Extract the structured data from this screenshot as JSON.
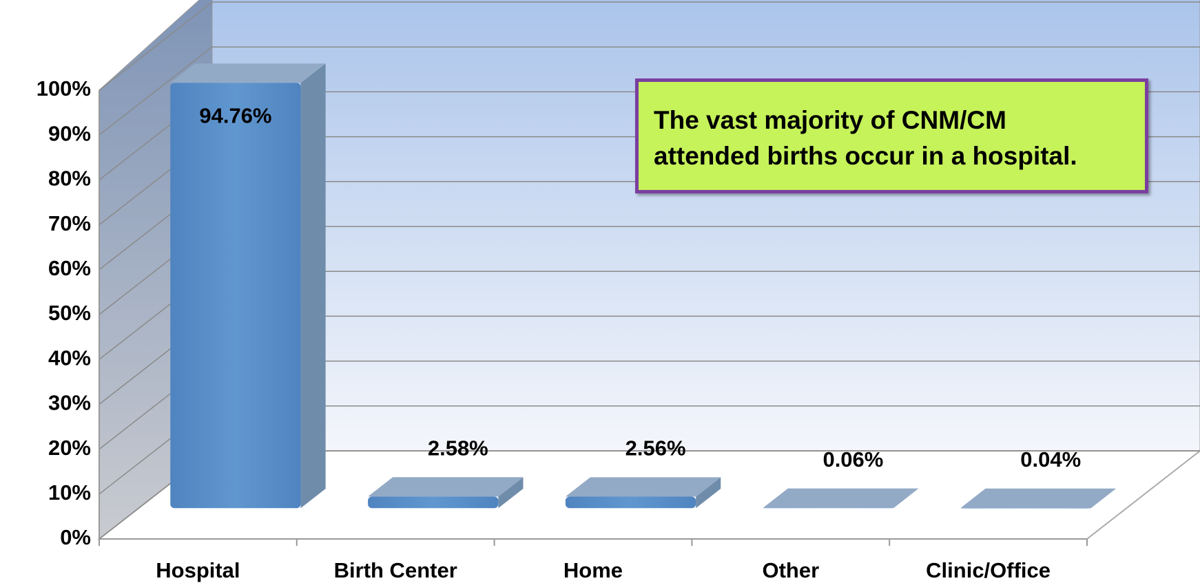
{
  "chart_data": {
    "type": "bar3d",
    "categories": [
      "Hospital",
      "Birth Center",
      "Home",
      "Other",
      "Clinic/Office"
    ],
    "values": [
      94.76,
      2.58,
      2.56,
      0.06,
      0.04
    ],
    "value_labels": [
      "94.76%",
      "2.58%",
      "2.56%",
      "0.06%",
      "0.04%"
    ],
    "color": "#5b8fc7",
    "ylim": [
      0,
      100
    ],
    "yticks": [
      {
        "value": 0,
        "label": "0%"
      },
      {
        "value": 10,
        "label": "10%"
      },
      {
        "value": 20,
        "label": "20%"
      },
      {
        "value": 30,
        "label": "30%"
      },
      {
        "value": 40,
        "label": "40%"
      },
      {
        "value": 50,
        "label": "50%"
      },
      {
        "value": 60,
        "label": "60%"
      },
      {
        "value": 70,
        "label": "70%"
      },
      {
        "value": 80,
        "label": "80%"
      },
      {
        "value": 90,
        "label": "90%"
      },
      {
        "value": 100,
        "label": "100%"
      }
    ],
    "grid": true,
    "annotation": "The vast majority of CNM/CM attended births occur in a hospital."
  }
}
